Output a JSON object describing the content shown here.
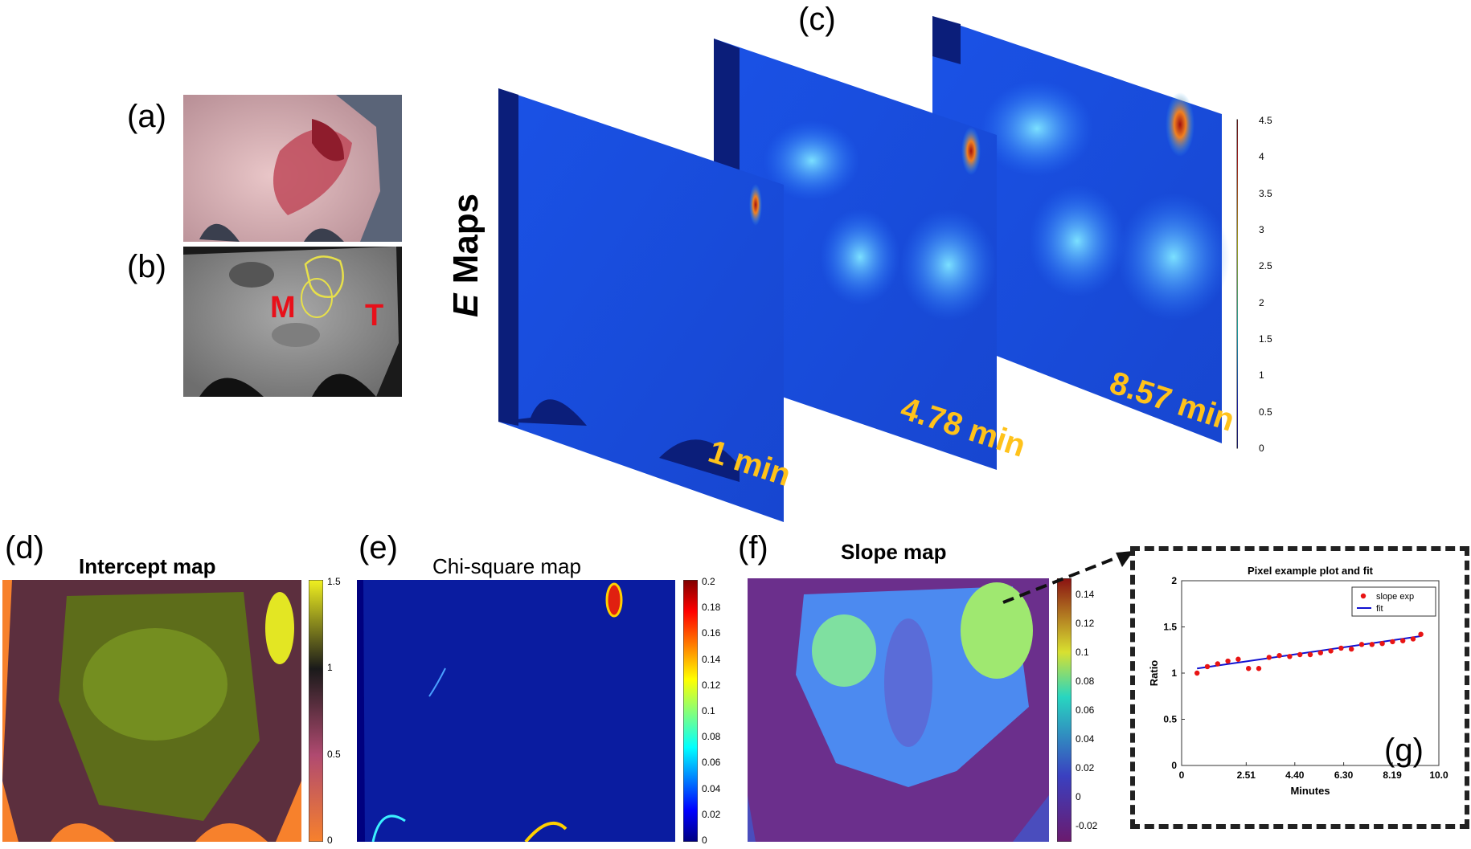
{
  "panels": {
    "a": {
      "label": "(a)"
    },
    "b": {
      "label": "(b)",
      "roi_muscle": "M",
      "roi_tumor": "T"
    },
    "c": {
      "label": "(c)",
      "title_italic": "E",
      "title_rest": " Maps",
      "frames": [
        "1 min",
        "4.78 min",
        "8.57 min"
      ],
      "colorbar_ticks": [
        "4.5",
        "4",
        "3.5",
        "3",
        "2.5",
        "2",
        "1.5",
        "1",
        "0.5",
        "0"
      ]
    },
    "d": {
      "label": "(d)",
      "title": "Intercept map",
      "colorbar_ticks": [
        "1.5",
        "1",
        "0.5",
        "0"
      ]
    },
    "e": {
      "label": "(e)",
      "title": "Chi-square map",
      "colorbar_ticks": [
        "0.2",
        "0.18",
        "0.16",
        "0.14",
        "0.12",
        "0.1",
        "0.08",
        "0.06",
        "0.04",
        "0.02",
        "0"
      ]
    },
    "f": {
      "label": "(f)",
      "title": "Slope  map",
      "colorbar_ticks": [
        "0.14",
        "0.12",
        "0.1",
        "0.08",
        "0.06",
        "0.04",
        "0.02",
        "0",
        "-0.02"
      ]
    },
    "g": {
      "label": "(g)"
    }
  },
  "colors": {
    "accent_label": "#e8101a",
    "roi_outline": "#e7e04a",
    "time_text": "#ffc21a",
    "fit_line": "#1010d0",
    "exp_points": "#e81414"
  },
  "chart_data": {
    "type": "scatter",
    "title": "Pixel example plot and fit",
    "xlabel": "Minutes",
    "ylabel": "Ratio",
    "xlim": [
      0,
      10.0
    ],
    "ylim": [
      0,
      2
    ],
    "xticks": [
      "0",
      "2.51",
      "4.40",
      "6.30",
      "8.19",
      "10.0"
    ],
    "yticks": [
      "0",
      "0.5",
      "1",
      "1.5",
      "2"
    ],
    "legend_position": "top-right",
    "series": [
      {
        "name": "slope exp",
        "kind": "points",
        "x": [
          0.6,
          1.0,
          1.4,
          1.8,
          2.2,
          2.6,
          3.0,
          3.4,
          3.8,
          4.2,
          4.6,
          5.0,
          5.4,
          5.8,
          6.2,
          6.6,
          7.0,
          7.4,
          7.8,
          8.2,
          8.6,
          9.0,
          9.3
        ],
        "y": [
          1.0,
          1.07,
          1.1,
          1.13,
          1.15,
          1.05,
          1.05,
          1.17,
          1.19,
          1.18,
          1.2,
          1.2,
          1.22,
          1.24,
          1.27,
          1.26,
          1.31,
          1.31,
          1.32,
          1.34,
          1.35,
          1.37,
          1.42
        ]
      },
      {
        "name": "fit",
        "kind": "line",
        "x": [
          0.6,
          9.3
        ],
        "y": [
          1.05,
          1.4
        ]
      }
    ]
  }
}
